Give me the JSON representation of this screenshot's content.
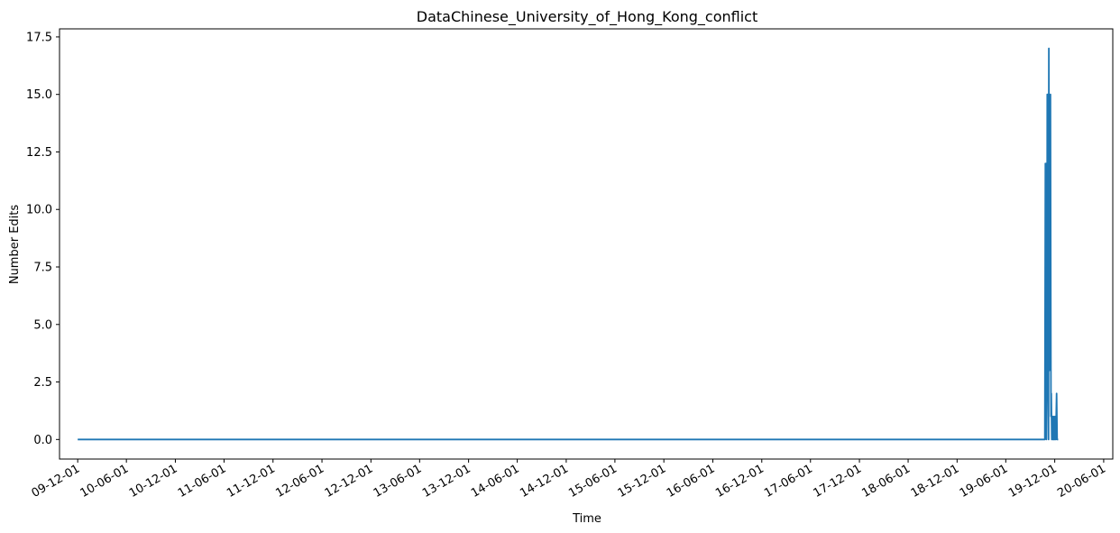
{
  "chart_data": {
    "type": "line",
    "title": "DataChinese_University_of_Hong_Kong_conflict",
    "xlabel": "Time",
    "ylabel": "Number Edits",
    "x_ticks": [
      "09-12-01",
      "10-06-01",
      "10-12-01",
      "11-06-01",
      "11-12-01",
      "12-06-01",
      "12-12-01",
      "13-06-01",
      "13-12-01",
      "14-06-01",
      "14-12-01",
      "15-06-01",
      "15-12-01",
      "16-06-01",
      "16-12-01",
      "17-06-01",
      "17-12-01",
      "18-06-01",
      "18-12-01",
      "19-06-01",
      "19-12-01",
      "20-06-01"
    ],
    "y_ticks": [
      "0.0",
      "2.5",
      "5.0",
      "7.5",
      "10.0",
      "12.5",
      "15.0",
      "17.5"
    ],
    "ylim": [
      -0.85,
      17.85
    ],
    "xlim": [
      "2009-09-24",
      "2020-07-05"
    ],
    "grid": false,
    "series_color": "#1f77b4",
    "series": [
      {
        "x": [
          "2009-12-01",
          "2019-10-25",
          "2019-10-27",
          "2019-10-28",
          "2019-10-30",
          "2019-10-31",
          "2019-11-02",
          "2019-11-03",
          "2019-11-05",
          "2019-11-06",
          "2019-11-08",
          "2019-11-09",
          "2019-11-11",
          "2019-11-12",
          "2019-11-14",
          "2019-11-15",
          "2019-11-17",
          "2019-11-18",
          "2019-11-20",
          "2019-11-21",
          "2019-11-23",
          "2019-11-24",
          "2019-11-26",
          "2019-11-28",
          "2019-11-29",
          "2019-12-01",
          "2019-12-02",
          "2019-12-04",
          "2019-12-05",
          "2019-12-08",
          "2019-12-10",
          "2019-12-12",
          "2019-12-14"
        ],
        "y": [
          0,
          0,
          12,
          4,
          12,
          0,
          2,
          15,
          5,
          15,
          0,
          17,
          3,
          12,
          6,
          15,
          1,
          2,
          0,
          1,
          0,
          1,
          0,
          0,
          1,
          0,
          0,
          1,
          0,
          2,
          0,
          0,
          0
        ]
      }
    ]
  }
}
